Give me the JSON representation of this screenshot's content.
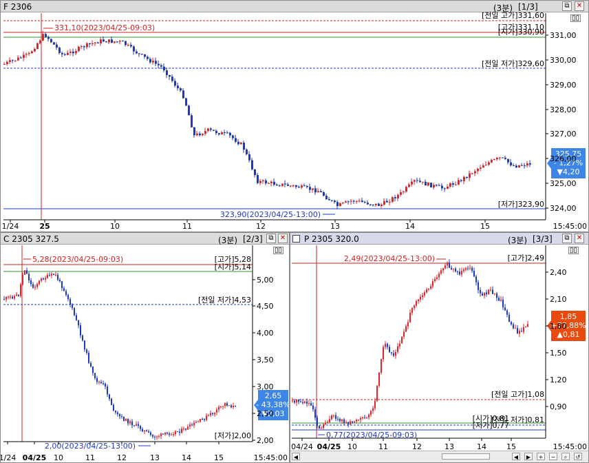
{
  "panels": [
    {
      "title": "F 2306",
      "interval": "(3분)",
      "page": "[1/3]",
      "time_label": "15:45:00",
      "x_ticks": [
        "1/24",
        "25",
        "10",
        "11",
        "12",
        "13",
        "14",
        "15"
      ],
      "y_ticks": [
        "331,00",
        "330,00",
        "329,00",
        "328,00",
        "327,00",
        "326,00",
        "325,00",
        "324,00"
      ],
      "current_price_box": {
        "price": "325,75",
        "pct": "- 1,27%",
        "change": "▼4,20"
      },
      "annotations": {
        "high_marker": "331,10(2023/04/25-09:03)",
        "low_marker": "323,90(2023/04/25-13:00)",
        "prev_high": "[전일 고가]331,60",
        "high": "[고가]331,10",
        "open": "[시가]330,90",
        "prev_low": "[전일 저가]329,60",
        "low": "[저가]323,90"
      }
    },
    {
      "title": "C 2305 327.5",
      "interval": "(3분)",
      "page": "[2/3]",
      "time_label": "15:45:00",
      "x_ticks": [
        "1/24",
        "04/25",
        "10",
        "11",
        "12",
        "13",
        "14",
        "15"
      ],
      "y_ticks": [
        "5,00",
        "4,50",
        "4,00",
        "3,50",
        "3,00",
        "2,50",
        "2,00"
      ],
      "current_price_box": {
        "price": "2,65",
        "pct": "- 43,38%",
        "change": "▼2,03"
      },
      "annotations": {
        "high_marker": "5,28(2023/04/25-09:03)",
        "low_marker": "2,00(2023/04/25-13:00)",
        "high": "[고가]5,28",
        "open": "[시가]5,14",
        "prev_low": "[전일 저가]4,53",
        "low": "[저가]2,00"
      }
    },
    {
      "title": "P 2305 320.0",
      "interval": "(3분)",
      "page": "[3/3]",
      "time_label": "15:45:00",
      "x_ticks": [
        "04/24",
        "04/25",
        "10",
        "11",
        "12",
        "13",
        "14",
        "15"
      ],
      "y_ticks": [
        "2,40",
        "2,10",
        "1,80",
        "1,50",
        "1,20",
        "0,90"
      ],
      "current_price_box": {
        "price": "1,85",
        "pct": "+77,88%",
        "change": "▲0,81"
      },
      "annotations": {
        "high_marker": "2,49(2023/04/25-13:00)",
        "low_marker": "0,77(2023/04/25-09:03)",
        "high": "[고가]2,49",
        "prev_high": "[전일 고가]1,08",
        "open": "[시가]0,81",
        "prev_low": "[전일 저가]0,81",
        "low": "[저가]0,77"
      }
    }
  ],
  "colors": {
    "up": "#e8202a",
    "down": "#1c38c8",
    "level_red": "#d02020",
    "level_green": "#2a9a2a",
    "level_blue": "#1c38c8",
    "box_down": "#3d86e8",
    "box_up": "#e84a10"
  },
  "icons": {
    "restore": "restore-icon",
    "close": "close-icon",
    "toggle": "panel-toggle-icon",
    "scroll_left": "arrow-left-icon",
    "scroll_right": "arrow-right-icon",
    "zoom_in": "zoom-in-icon",
    "zoom_out": "zoom-out-icon",
    "search": "search-icon"
  }
}
